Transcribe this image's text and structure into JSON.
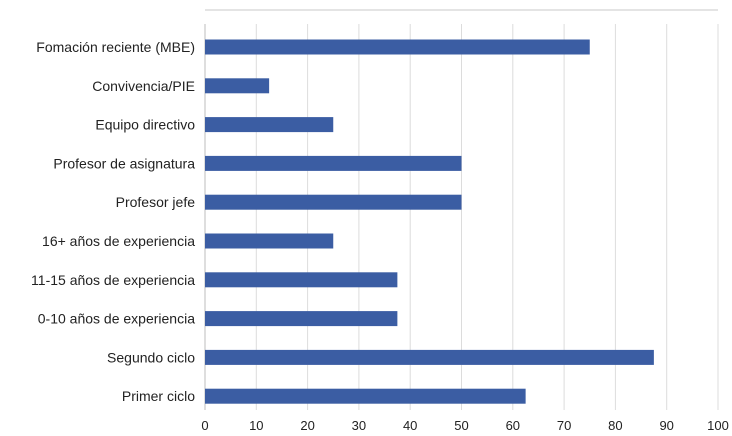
{
  "chart_data": {
    "type": "bar",
    "orientation": "horizontal",
    "title": "",
    "xlabel": "",
    "ylabel": "",
    "categories": [
      "Fomación reciente (MBE)",
      "Convivencia/PIE",
      "Equipo directivo",
      "Profesor de asignatura",
      "Profesor jefe",
      "16+ años de experiencia",
      "11-15 años de experiencia",
      "0-10 años de experiencia",
      "Segundo ciclo",
      "Primer ciclo"
    ],
    "values": [
      75,
      12.5,
      25,
      50,
      50,
      25,
      37.5,
      37.5,
      87.5,
      62.5
    ],
    "xlim": [
      0,
      100
    ],
    "xticks": [
      0,
      10,
      20,
      30,
      40,
      50,
      60,
      70,
      80,
      90,
      100
    ],
    "grid": "vertical",
    "legend": "none",
    "colors": {
      "bar": "#3b5da3",
      "grid": "#dcdcdc",
      "text": "#222222",
      "top_rule": "#c8c8c8"
    }
  }
}
